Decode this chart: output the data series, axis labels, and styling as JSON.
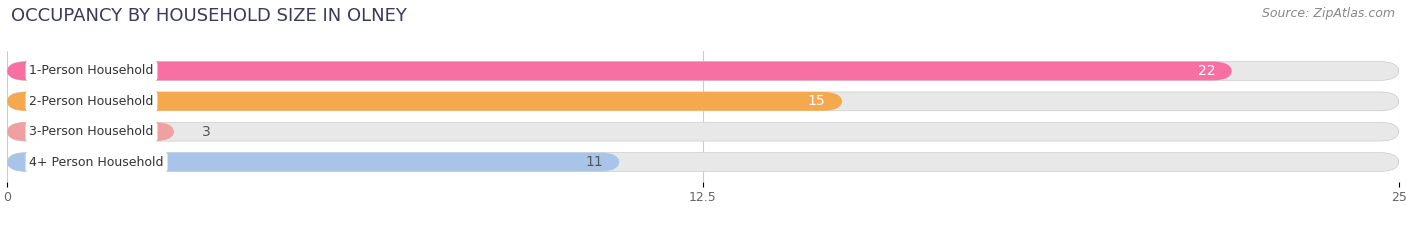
{
  "title": "OCCUPANCY BY HOUSEHOLD SIZE IN OLNEY",
  "source": "Source: ZipAtlas.com",
  "categories": [
    "1-Person Household",
    "2-Person Household",
    "3-Person Household",
    "4+ Person Household"
  ],
  "values": [
    22,
    15,
    3,
    11
  ],
  "bar_colors": [
    "#f76fa3",
    "#f5a94e",
    "#f0a0a0",
    "#a8c4e8"
  ],
  "bar_bg_color": "#e8e8e8",
  "xlim": [
    0,
    25
  ],
  "xticks": [
    0,
    12.5,
    25
  ],
  "background_color": "#ffffff",
  "title_fontsize": 13,
  "source_fontsize": 9,
  "bar_height": 0.62,
  "bar_label_fontsize": 10,
  "label_color": [
    "#ffffff",
    "#ffffff",
    "#555555",
    "#555555"
  ]
}
